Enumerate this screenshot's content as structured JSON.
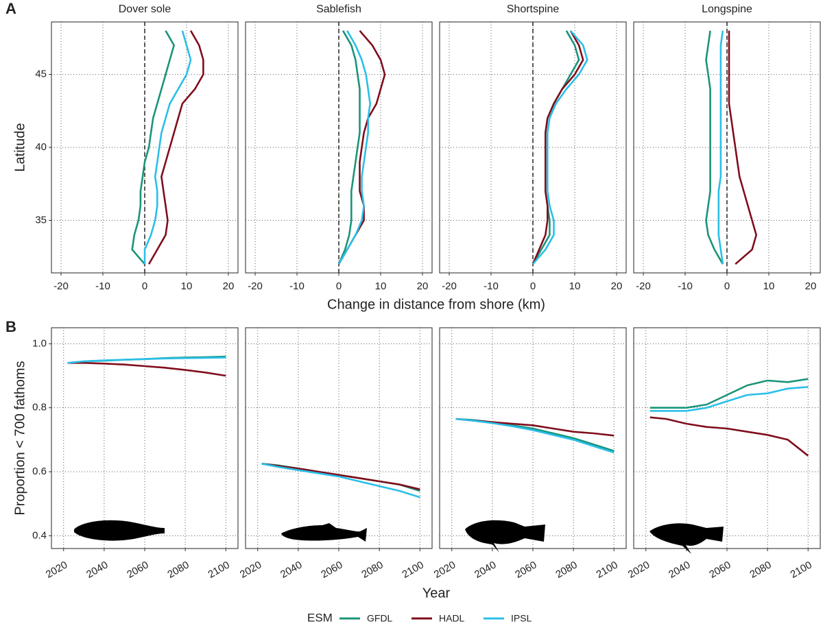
{
  "figure": {
    "panel_labels": [
      "A",
      "B"
    ],
    "legend": {
      "title": "ESM",
      "entries": [
        {
          "name": "GFDL",
          "color": "#1a9479"
        },
        {
          "name": "HADL",
          "color": "#7f0e1c"
        },
        {
          "name": "IPSL",
          "color": "#29bfe8"
        }
      ]
    }
  },
  "chart_data": [
    {
      "type": "line",
      "orientation": "vertical",
      "title": "Dover sole",
      "ylabel": "Latitude",
      "xlabel": "Change in distance from shore (km)",
      "reference_x": 0,
      "grid": true,
      "xlim": [
        -22.3,
        22.3
      ],
      "xticks": [
        -20,
        -10,
        0,
        10,
        20
      ],
      "ylim": [
        31.4,
        48.6
      ],
      "yticks": [
        35,
        40,
        45
      ],
      "y": [
        32,
        33,
        34,
        35,
        36,
        37,
        38,
        39,
        40,
        41,
        42,
        43,
        44,
        45,
        46,
        47,
        48
      ],
      "series": [
        {
          "values": [
            0,
            -3,
            -2.5,
            -1.5,
            -1,
            -1,
            -0.5,
            0,
            1,
            1.5,
            2,
            3,
            4,
            5,
            6,
            7,
            5
          ]
        },
        {
          "values": [
            1,
            3,
            5,
            5.5,
            5,
            4.5,
            4,
            5,
            6,
            7,
            8,
            9,
            12,
            14,
            14,
            13,
            11
          ]
        },
        {
          "values": [
            0,
            0,
            1.5,
            2.5,
            3,
            3,
            2.5,
            3,
            3.5,
            4,
            5,
            6,
            8,
            10,
            11,
            10,
            9
          ]
        }
      ]
    },
    {
      "type": "line",
      "orientation": "vertical",
      "title": "Sablefish",
      "reference_x": 0,
      "grid": true,
      "xlim": [
        -22.3,
        22.3
      ],
      "xticks": [
        -20,
        -10,
        0,
        10,
        20
      ],
      "ylim": [
        31.4,
        48.6
      ],
      "yticks": [
        35,
        40,
        45
      ],
      "y": [
        32,
        33,
        34,
        35,
        36,
        37,
        38,
        39,
        40,
        41,
        42,
        43,
        44,
        45,
        46,
        47,
        48
      ],
      "series": [
        {
          "values": [
            0,
            1.5,
            2.5,
            3,
            3,
            3,
            3.5,
            4,
            4.5,
            5,
            5,
            5,
            5,
            4.5,
            4,
            3,
            1
          ]
        },
        {
          "values": [
            0,
            2,
            4,
            6,
            6,
            5,
            5,
            5,
            5.5,
            6,
            7,
            9,
            10,
            11,
            10,
            8,
            5
          ]
        },
        {
          "values": [
            0,
            2,
            4,
            5.5,
            6,
            5.5,
            5.5,
            6,
            6.5,
            7,
            7,
            7.5,
            7,
            6.5,
            5.5,
            4,
            2
          ]
        }
      ]
    },
    {
      "type": "line",
      "orientation": "vertical",
      "title": "Shortspine",
      "reference_x": 0,
      "grid": true,
      "xlim": [
        -22.3,
        22.3
      ],
      "xticks": [
        -20,
        -10,
        0,
        10,
        20
      ],
      "ylim": [
        31.4,
        48.6
      ],
      "yticks": [
        35,
        40,
        45
      ],
      "y": [
        32,
        33,
        34,
        35,
        36,
        37,
        38,
        39,
        40,
        41,
        42,
        43,
        44,
        45,
        46,
        47,
        48
      ],
      "series": [
        {
          "values": [
            0,
            2,
            4,
            4,
            3.5,
            3,
            3,
            3,
            3,
            3,
            3.5,
            5,
            7,
            9,
            11,
            10,
            8
          ]
        },
        {
          "values": [
            0,
            1.5,
            3,
            3.5,
            3.5,
            3,
            3,
            3,
            3,
            3,
            3.5,
            5,
            7,
            10,
            12,
            11,
            9
          ]
        },
        {
          "values": [
            0,
            3,
            5,
            5,
            4,
            3.5,
            3.5,
            3.5,
            3.5,
            3.5,
            4,
            5.5,
            8,
            11,
            13,
            12,
            9
          ]
        }
      ]
    },
    {
      "type": "line",
      "orientation": "vertical",
      "title": "Longspine",
      "reference_x": 0,
      "grid": true,
      "xlim": [
        -22.3,
        22.3
      ],
      "xticks": [
        -20,
        -10,
        0,
        10,
        20
      ],
      "ylim": [
        31.4,
        48.6
      ],
      "yticks": [
        35,
        40,
        45
      ],
      "y": [
        32,
        33,
        34,
        35,
        36,
        37,
        38,
        39,
        40,
        41,
        42,
        43,
        44,
        45,
        46,
        47,
        48
      ],
      "series": [
        {
          "values": [
            -1,
            -3,
            -4.5,
            -5,
            -4.5,
            -4,
            -4,
            -4,
            -4,
            -4,
            -4,
            -4,
            -4,
            -4.5,
            -5,
            -4.5,
            -4
          ]
        },
        {
          "values": [
            2,
            6,
            7,
            6,
            5,
            4,
            3,
            2.5,
            2,
            1.5,
            1,
            0.5,
            0.5,
            0.5,
            0.5,
            0.5,
            0.5
          ]
        },
        {
          "values": [
            -1,
            -1.5,
            -2,
            -2,
            -2,
            -2,
            -1.5,
            -1.5,
            -1.5,
            -1.5,
            -1.5,
            -1.5,
            -1.5,
            -1.5,
            -1.5,
            -1.5,
            -1
          ]
        }
      ]
    },
    {
      "type": "line",
      "ylabel": "Proportion < 700 fathoms",
      "xlabel": "Year",
      "grid": true,
      "xlim": [
        2014,
        2106
      ],
      "xticks": [
        2020,
        2040,
        2060,
        2080,
        2100
      ],
      "ylim": [
        0.36,
        1.05
      ],
      "yticks": [
        0.4,
        0.6,
        0.8,
        {
          "value": 1,
          "label": "1.0"
        }
      ],
      "x": [
        2022,
        2030,
        2040,
        2050,
        2060,
        2070,
        2080,
        2090,
        2100
      ],
      "series": [
        {
          "values": [
            0.94,
            0.945,
            0.947,
            0.95,
            0.952,
            0.955,
            0.957,
            0.958,
            0.96
          ]
        },
        {
          "values": [
            0.94,
            0.94,
            0.938,
            0.935,
            0.93,
            0.925,
            0.918,
            0.91,
            0.9
          ]
        },
        {
          "values": [
            0.94,
            0.945,
            0.948,
            0.95,
            0.952,
            0.954,
            0.955,
            0.956,
            0.957
          ]
        }
      ]
    },
    {
      "type": "line",
      "grid": true,
      "xlim": [
        2014,
        2106
      ],
      "xticks": [
        2020,
        2040,
        2060,
        2080,
        2100
      ],
      "ylim": [
        0.36,
        1.05
      ],
      "yticks": [
        0.4,
        0.6,
        0.8,
        {
          "value": 1,
          "label": "1.0"
        }
      ],
      "x": [
        2022,
        2030,
        2040,
        2050,
        2060,
        2070,
        2080,
        2090,
        2100
      ],
      "series": [
        {
          "values": [
            0.625,
            0.62,
            0.61,
            0.6,
            0.59,
            0.58,
            0.57,
            0.56,
            0.54
          ]
        },
        {
          "values": [
            0.625,
            0.618,
            0.61,
            0.6,
            0.59,
            0.58,
            0.57,
            0.56,
            0.545
          ]
        },
        {
          "values": [
            0.625,
            0.615,
            0.605,
            0.595,
            0.585,
            0.57,
            0.555,
            0.54,
            0.52
          ]
        }
      ]
    },
    {
      "type": "line",
      "grid": true,
      "xlim": [
        2014,
        2106
      ],
      "xticks": [
        2020,
        2040,
        2060,
        2080,
        2100
      ],
      "ylim": [
        0.36,
        1.05
      ],
      "yticks": [
        0.4,
        0.6,
        0.8,
        {
          "value": 1,
          "label": "1.0"
        }
      ],
      "x": [
        2022,
        2030,
        2040,
        2050,
        2060,
        2070,
        2080,
        2090,
        2100
      ],
      "series": [
        {
          "values": [
            0.765,
            0.762,
            0.755,
            0.745,
            0.735,
            0.72,
            0.705,
            0.685,
            0.665
          ]
        },
        {
          "values": [
            0.765,
            0.76,
            0.755,
            0.75,
            0.745,
            0.735,
            0.725,
            0.72,
            0.713
          ]
        },
        {
          "values": [
            0.765,
            0.76,
            0.752,
            0.742,
            0.73,
            0.715,
            0.7,
            0.68,
            0.66
          ]
        }
      ]
    },
    {
      "type": "line",
      "grid": true,
      "xlim": [
        2014,
        2106
      ],
      "xticks": [
        2020,
        2040,
        2060,
        2080,
        2100
      ],
      "ylim": [
        0.36,
        1.05
      ],
      "yticks": [
        0.4,
        0.6,
        0.8,
        {
          "value": 1,
          "label": "1.0"
        }
      ],
      "x": [
        2022,
        2030,
        2040,
        2050,
        2060,
        2070,
        2080,
        2090,
        2100
      ],
      "series": [
        {
          "values": [
            0.8,
            0.8,
            0.8,
            0.81,
            0.84,
            0.87,
            0.885,
            0.88,
            0.89
          ]
        },
        {
          "values": [
            0.77,
            0.765,
            0.75,
            0.74,
            0.735,
            0.725,
            0.715,
            0.7,
            0.65
          ]
        },
        {
          "values": [
            0.79,
            0.79,
            0.79,
            0.8,
            0.82,
            0.84,
            0.845,
            0.86,
            0.865
          ]
        }
      ]
    }
  ]
}
